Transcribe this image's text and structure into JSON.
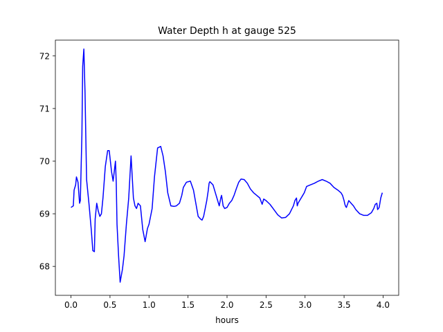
{
  "chart_data": {
    "type": "line",
    "title": "Water Depth h at gauge 525",
    "xlabel": "hours",
    "ylabel": "",
    "xlim": [
      -0.2,
      4.2
    ],
    "ylim": [
      67.45,
      72.3
    ],
    "xticks": [
      0.0,
      0.5,
      1.0,
      1.5,
      2.0,
      2.5,
      3.0,
      3.5,
      4.0
    ],
    "xtick_labels": [
      "0.0",
      "0.5",
      "1.0",
      "1.5",
      "2.0",
      "2.5",
      "3.0",
      "3.5",
      "4.0"
    ],
    "yticks": [
      68,
      69,
      70,
      71,
      72
    ],
    "ytick_labels": [
      "68",
      "69",
      "70",
      "71",
      "72"
    ],
    "grid": false,
    "series": [
      {
        "color": "#0000ff",
        "x": [
          0.0,
          0.03,
          0.04,
          0.06,
          0.07,
          0.09,
          0.11,
          0.12,
          0.14,
          0.15,
          0.165,
          0.18,
          0.2,
          0.23,
          0.26,
          0.28,
          0.3,
          0.31,
          0.33,
          0.35,
          0.37,
          0.39,
          0.41,
          0.44,
          0.47,
          0.49,
          0.52,
          0.54,
          0.57,
          0.58,
          0.59,
          0.61,
          0.63,
          0.66,
          0.68,
          0.71,
          0.74,
          0.77,
          0.8,
          0.82,
          0.84,
          0.86,
          0.89,
          0.92,
          0.95,
          0.98,
          1.0,
          1.04,
          1.07,
          1.11,
          1.15,
          1.18,
          1.21,
          1.24,
          1.28,
          1.32,
          1.35,
          1.39,
          1.42,
          1.44,
          1.48,
          1.53,
          1.57,
          1.6,
          1.63,
          1.66,
          1.68,
          1.7,
          1.72,
          1.74,
          1.76,
          1.77,
          1.78,
          1.8,
          1.82,
          1.84,
          1.87,
          1.9,
          1.92,
          1.93,
          1.95,
          1.97,
          2.0,
          2.03,
          2.06,
          2.09,
          2.12,
          2.15,
          2.18,
          2.22,
          2.26,
          2.3,
          2.34,
          2.38,
          2.42,
          2.44,
          2.45,
          2.47,
          2.5,
          2.55,
          2.6,
          2.65,
          2.7,
          2.75,
          2.8,
          2.85,
          2.87,
          2.89,
          2.9,
          2.91,
          2.93,
          2.95,
          2.97,
          2.99,
          3.02,
          3.07,
          3.12,
          3.17,
          3.22,
          3.27,
          3.32,
          3.37,
          3.42,
          3.46,
          3.48,
          3.5,
          3.51,
          3.52,
          3.53,
          3.56,
          3.59,
          3.62,
          3.65,
          3.7,
          3.75,
          3.8,
          3.85,
          3.88,
          3.9,
          3.92,
          3.93,
          3.95,
          3.97,
          3.99
        ],
        "y": [
          69.12,
          69.15,
          69.45,
          69.55,
          69.7,
          69.6,
          69.2,
          69.25,
          70.5,
          71.8,
          72.13,
          71.3,
          69.65,
          69.2,
          68.7,
          68.3,
          68.28,
          68.9,
          69.2,
          69.05,
          68.95,
          69.0,
          69.3,
          69.9,
          70.2,
          70.2,
          69.8,
          69.62,
          70.0,
          69.6,
          68.8,
          68.2,
          67.7,
          67.95,
          68.2,
          68.8,
          69.3,
          70.1,
          69.3,
          69.15,
          69.1,
          69.2,
          69.15,
          68.7,
          68.47,
          68.72,
          68.8,
          69.1,
          69.7,
          70.25,
          70.28,
          70.1,
          69.8,
          69.4,
          69.15,
          69.14,
          69.15,
          69.2,
          69.35,
          69.5,
          69.6,
          69.62,
          69.45,
          69.2,
          68.95,
          68.9,
          68.88,
          68.95,
          69.1,
          69.25,
          69.45,
          69.58,
          69.61,
          69.58,
          69.55,
          69.45,
          69.3,
          69.15,
          69.3,
          69.35,
          69.15,
          69.1,
          69.12,
          69.2,
          69.25,
          69.35,
          69.48,
          69.6,
          69.66,
          69.65,
          69.58,
          69.47,
          69.4,
          69.35,
          69.3,
          69.22,
          69.18,
          69.28,
          69.25,
          69.18,
          69.08,
          68.98,
          68.92,
          68.93,
          69.0,
          69.15,
          69.25,
          69.3,
          69.15,
          69.2,
          69.25,
          69.3,
          69.35,
          69.4,
          69.52,
          69.55,
          69.58,
          69.62,
          69.65,
          69.62,
          69.58,
          69.5,
          69.45,
          69.4,
          69.35,
          69.25,
          69.18,
          69.14,
          69.12,
          69.25,
          69.2,
          69.15,
          69.08,
          69.0,
          68.97,
          68.97,
          69.02,
          69.1,
          69.18,
          69.2,
          69.08,
          69.12,
          69.3,
          69.4
        ]
      }
    ]
  }
}
